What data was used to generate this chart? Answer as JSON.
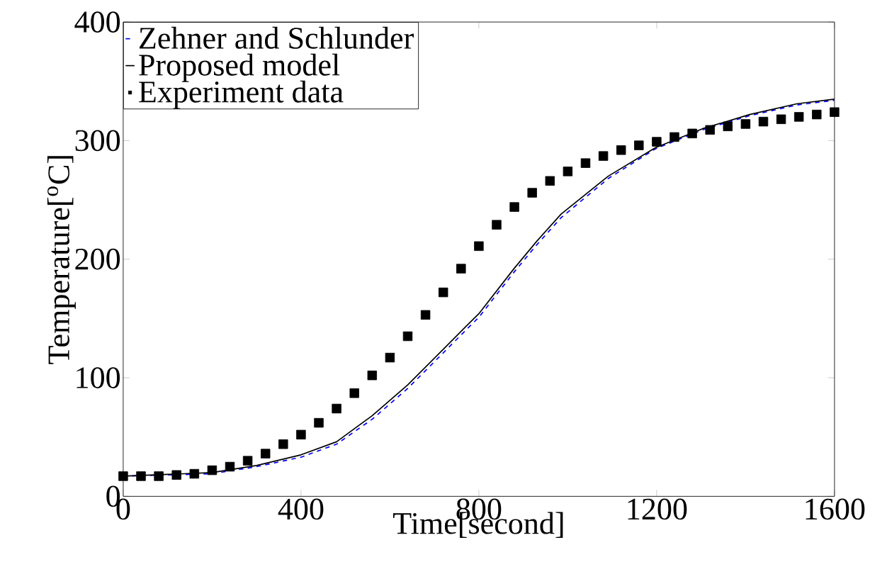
{
  "chart_data": {
    "type": "line",
    "xlabel": "Time[second]",
    "ylabel": "Temperature[$^{o}$C]",
    "xlim": [
      0,
      1600
    ],
    "ylim": [
      0,
      400
    ],
    "xticks": [
      0,
      400,
      800,
      1200,
      1600
    ],
    "yticks": [
      0,
      100,
      200,
      300,
      400
    ],
    "grid": false,
    "legend": "top left",
    "series": [
      {
        "name": "Zehner and Schlunder",
        "color": "#0000ff",
        "line_style": "dashed",
        "marker": "none",
        "x": [
          0,
          200,
          300,
          400,
          480,
          560,
          640,
          720,
          773,
          800,
          879,
          930,
          985,
          1091,
          1197,
          1303,
          1409,
          1515,
          1600
        ],
        "values": [
          17,
          19,
          25,
          33,
          44,
          65,
          91,
          121,
          141,
          151,
          189,
          212,
          235,
          268,
          293,
          309,
          321,
          330,
          334
        ]
      },
      {
        "name": "Proposed model",
        "color": "#000000",
        "line_style": "solid",
        "marker": "none",
        "x": [
          0,
          200,
          300,
          400,
          480,
          560,
          640,
          720,
          773,
          800,
          879,
          930,
          985,
          1091,
          1197,
          1303,
          1409,
          1515,
          1600
        ],
        "values": [
          17,
          20,
          26,
          35,
          46,
          68,
          94,
          124,
          144,
          154,
          192,
          215,
          238,
          270,
          294,
          310,
          322,
          331,
          335
        ]
      },
      {
        "name": "Experiment data",
        "type": "scatter",
        "color": "#000000",
        "marker": "square",
        "x": [
          0,
          40,
          80,
          120,
          160,
          200,
          240,
          280,
          320,
          360,
          400,
          440,
          480,
          520,
          560,
          600,
          640,
          680,
          720,
          760,
          800,
          840,
          880,
          920,
          960,
          1000,
          1040,
          1080,
          1120,
          1160,
          1200,
          1240,
          1280,
          1320,
          1360,
          1400,
          1440,
          1480,
          1520,
          1560,
          1600
        ],
        "values": [
          17,
          17,
          17,
          18,
          19,
          22,
          25,
          30,
          36,
          44,
          52,
          62,
          74,
          87,
          102,
          117,
          135,
          153,
          172,
          192,
          211,
          229,
          244,
          256,
          266,
          274,
          281,
          287,
          292,
          296,
          299,
          303,
          306,
          309,
          312,
          314,
          316,
          318,
          320,
          322,
          324
        ]
      }
    ]
  }
}
